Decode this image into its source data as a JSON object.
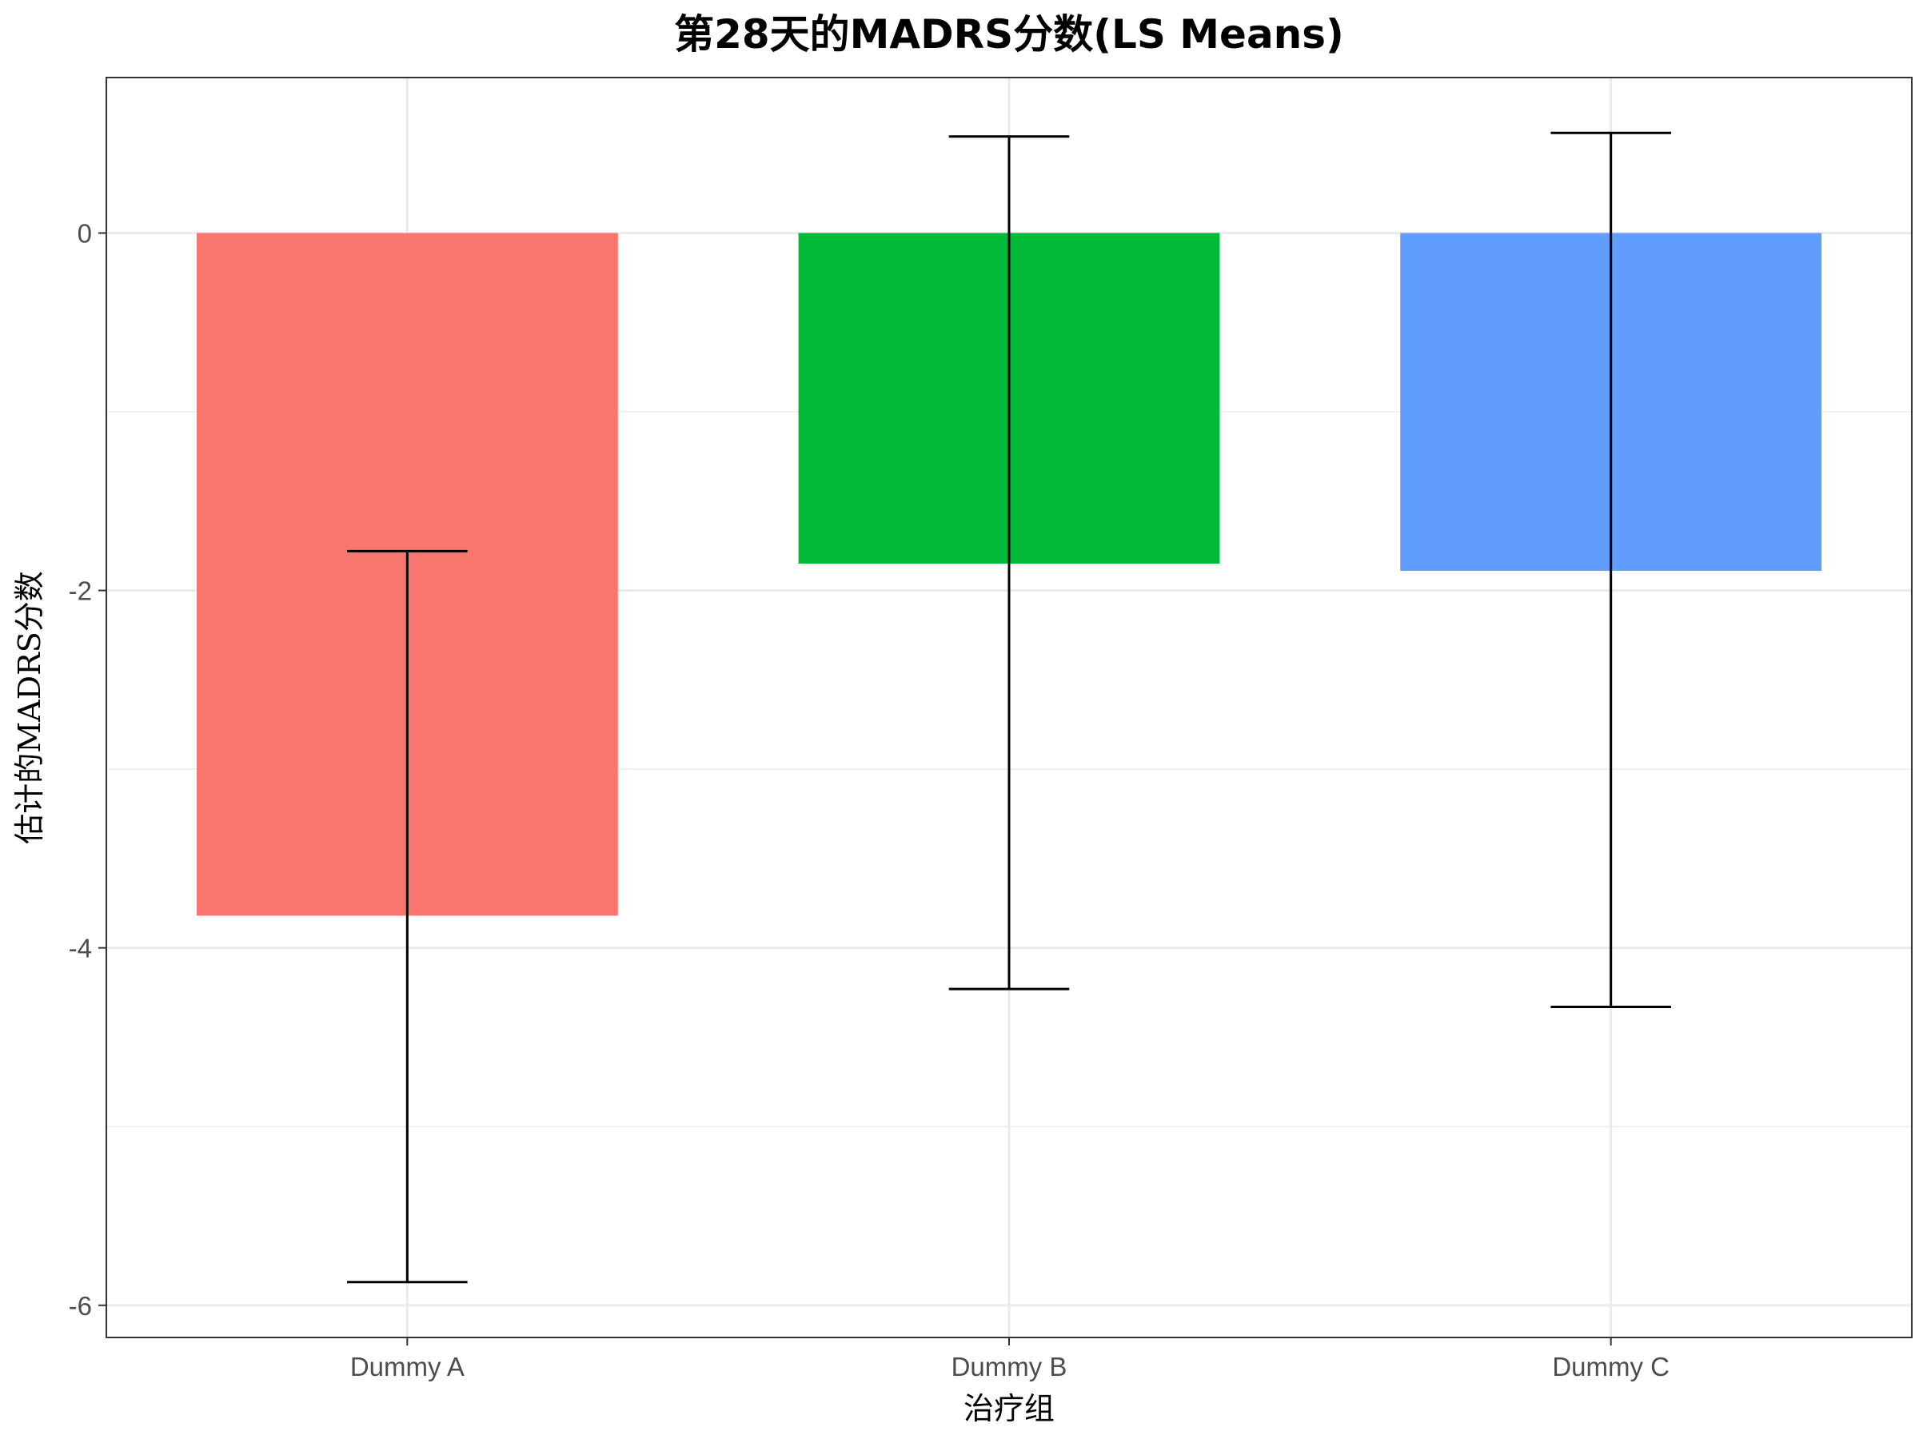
{
  "chart_data": {
    "type": "bar",
    "title": "第28天的MADRS分数(LS Means)",
    "xlabel": "治疗组",
    "ylabel": "估计的MADRS分数",
    "categories": [
      "Dummy A",
      "Dummy B",
      "Dummy C"
    ],
    "values": [
      -3.82,
      -1.85,
      -1.89
    ],
    "error_bars": [
      {
        "upper": -1.78,
        "lower": -5.87
      },
      {
        "upper": 0.54,
        "lower": -4.23
      },
      {
        "upper": 0.56,
        "lower": -4.33
      }
    ],
    "colors": [
      "#F8766D",
      "#00BA38",
      "#619CFF"
    ],
    "ylim": [
      -6.18,
      0.87
    ],
    "y_ticks": [
      0,
      -2,
      -4,
      -6
    ],
    "y_tick_labels": [
      "0",
      "-2",
      "-4",
      "-6"
    ],
    "grid": true
  }
}
